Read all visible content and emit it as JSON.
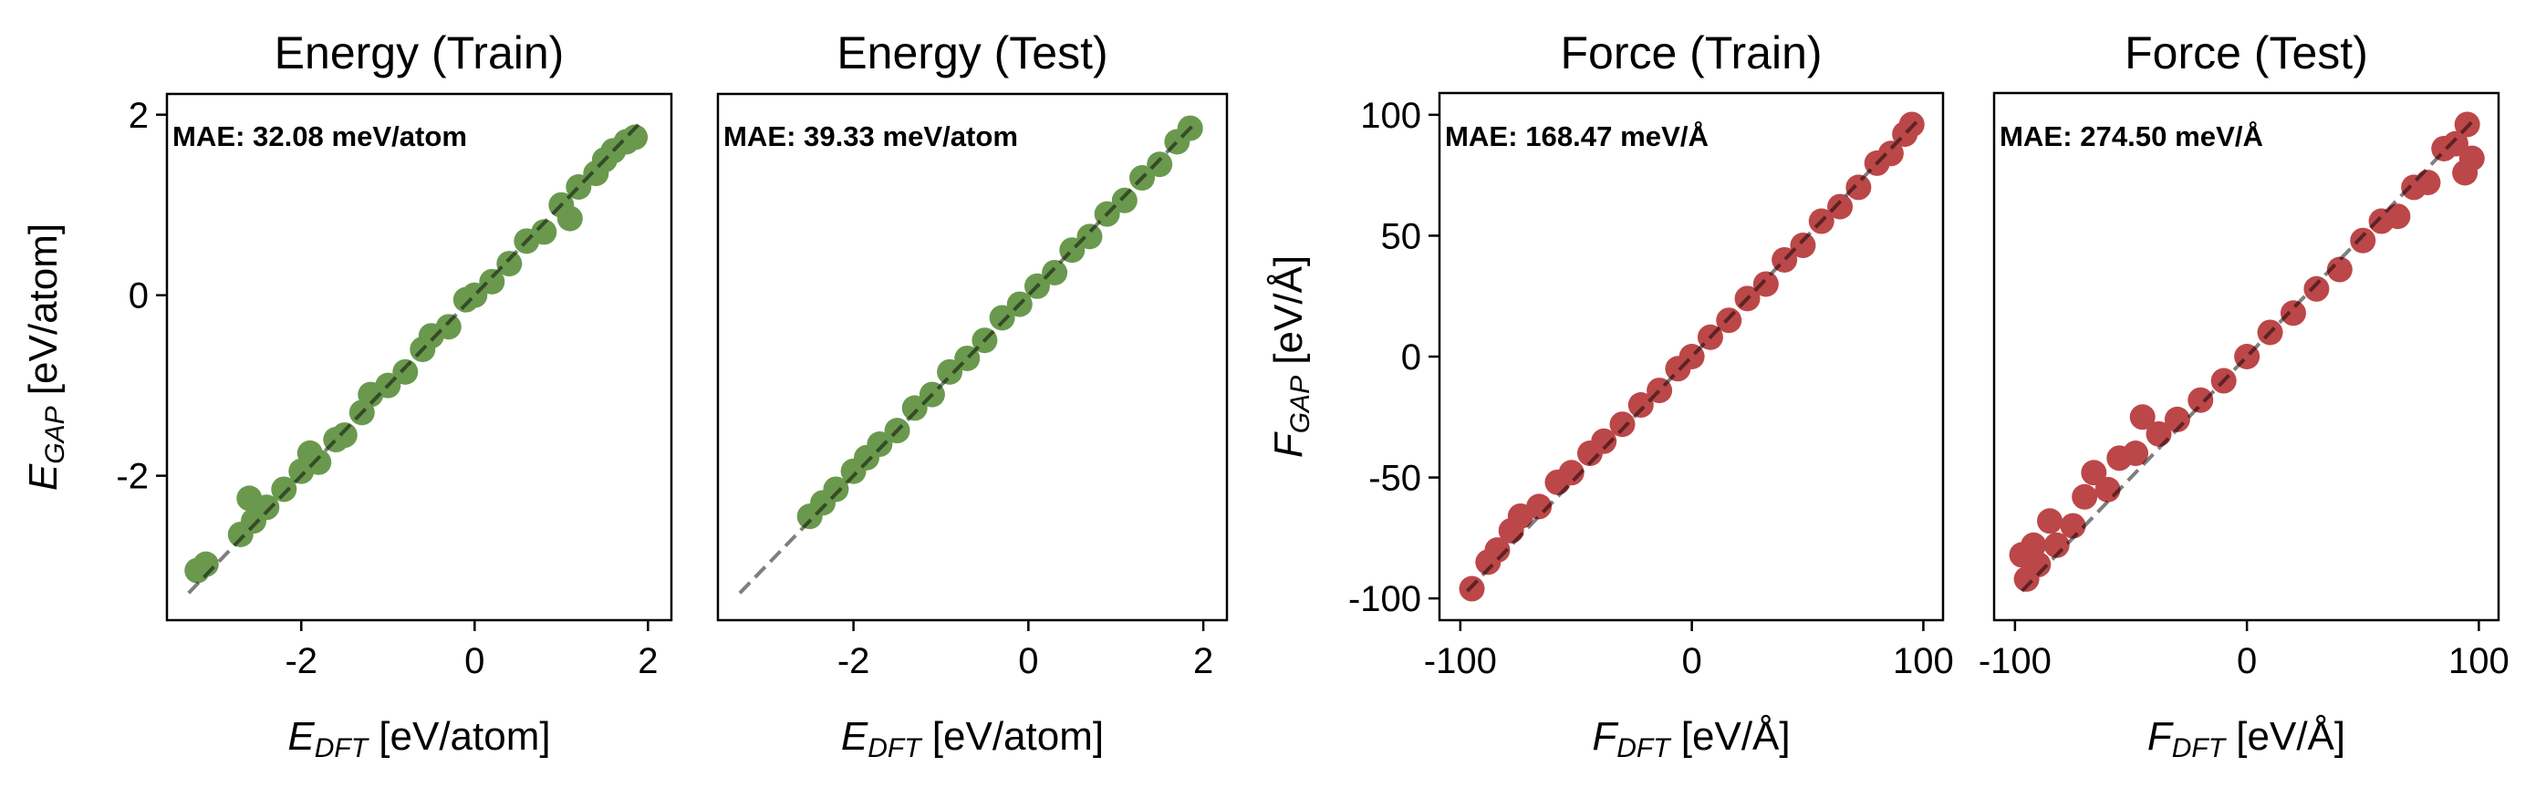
{
  "chart_data": [
    {
      "type": "scatter",
      "title": "Energy (Train)",
      "annotation": "MAE: 32.08 meV/atom",
      "xlabel": {
        "symbol": "E",
        "sub": "DFT",
        "unit": " [eV/atom]"
      },
      "ylabel": {
        "symbol": "E",
        "sub": "GAP",
        "unit": " [eV/atom]"
      },
      "xlim": [
        -3.55,
        2.27
      ],
      "ylim": [
        -3.6,
        2.23
      ],
      "xticks": [
        -2,
        0,
        2
      ],
      "xtick_labels": [
        "-2",
        "0",
        "2"
      ],
      "yticks": [
        -2,
        0,
        2
      ],
      "ytick_labels": [
        "-2",
        "0",
        "2"
      ],
      "color": "#6a994e",
      "reference_line": [
        -3.3,
        1.9
      ],
      "points": [
        [
          -3.2,
          -3.05
        ],
        [
          -3.1,
          -2.98
        ],
        [
          -2.7,
          -2.65
        ],
        [
          -2.6,
          -2.25
        ],
        [
          -2.55,
          -2.5
        ],
        [
          -2.4,
          -2.35
        ],
        [
          -2.2,
          -2.15
        ],
        [
          -2.0,
          -1.95
        ],
        [
          -1.9,
          -1.75
        ],
        [
          -1.8,
          -1.85
        ],
        [
          -1.6,
          -1.6
        ],
        [
          -1.5,
          -1.55
        ],
        [
          -1.3,
          -1.3
        ],
        [
          -1.2,
          -1.1
        ],
        [
          -1.0,
          -1.0
        ],
        [
          -0.8,
          -0.85
        ],
        [
          -0.6,
          -0.6
        ],
        [
          -0.5,
          -0.45
        ],
        [
          -0.3,
          -0.35
        ],
        [
          -0.1,
          -0.05
        ],
        [
          0.0,
          0.0
        ],
        [
          0.2,
          0.15
        ],
        [
          0.4,
          0.35
        ],
        [
          0.6,
          0.6
        ],
        [
          0.8,
          0.7
        ],
        [
          1.0,
          1.0
        ],
        [
          1.1,
          0.85
        ],
        [
          1.2,
          1.2
        ],
        [
          1.4,
          1.35
        ],
        [
          1.5,
          1.5
        ],
        [
          1.6,
          1.6
        ],
        [
          1.75,
          1.7
        ],
        [
          1.85,
          1.75
        ]
      ]
    },
    {
      "type": "scatter",
      "title": "Energy (Test)",
      "annotation": "MAE: 39.33 meV/atom",
      "xlabel": {
        "symbol": "E",
        "sub": "DFT",
        "unit": " [eV/atom]"
      },
      "ylabel": null,
      "xlim": [
        -3.55,
        2.27
      ],
      "ylim": [
        -3.6,
        2.23
      ],
      "xticks": [
        -2,
        0,
        2
      ],
      "xtick_labels": [
        "-2",
        "0",
        "2"
      ],
      "yticks": [],
      "ytick_labels": [],
      "color": "#6a994e",
      "reference_line": [
        -3.3,
        1.9
      ],
      "points": [
        [
          -2.5,
          -2.45
        ],
        [
          -2.35,
          -2.3
        ],
        [
          -2.2,
          -2.15
        ],
        [
          -2.0,
          -1.95
        ],
        [
          -1.85,
          -1.8
        ],
        [
          -1.7,
          -1.65
        ],
        [
          -1.5,
          -1.5
        ],
        [
          -1.3,
          -1.25
        ],
        [
          -1.1,
          -1.1
        ],
        [
          -0.9,
          -0.85
        ],
        [
          -0.7,
          -0.7
        ],
        [
          -0.5,
          -0.5
        ],
        [
          -0.3,
          -0.25
        ],
        [
          -0.1,
          -0.1
        ],
        [
          0.1,
          0.1
        ],
        [
          0.3,
          0.25
        ],
        [
          0.5,
          0.5
        ],
        [
          0.7,
          0.65
        ],
        [
          0.9,
          0.9
        ],
        [
          1.1,
          1.05
        ],
        [
          1.3,
          1.3
        ],
        [
          1.5,
          1.45
        ],
        [
          1.7,
          1.7
        ],
        [
          1.85,
          1.85
        ]
      ]
    },
    {
      "type": "scatter",
      "title": "Force (Train)",
      "annotation": "MAE: 168.47 meV/Å",
      "xlabel": {
        "symbol": "F",
        "sub": "DFT",
        "unit": " [eV/Å]"
      },
      "ylabel": {
        "symbol": "F",
        "sub": "GAP",
        "unit": " [eV/Å]"
      },
      "xlim": [
        -109,
        108.5
      ],
      "ylim": [
        -109,
        109
      ],
      "xticks": [
        -100,
        0,
        100
      ],
      "xtick_labels": [
        "-100",
        "0",
        "100"
      ],
      "yticks": [
        -100,
        -50,
        0,
        50,
        100
      ],
      "ytick_labels": [
        "-100",
        "-50",
        "0",
        "50",
        "100"
      ],
      "color": "#bc4749",
      "reference_line": [
        -97,
        97
      ],
      "points": [
        [
          -95,
          -96
        ],
        [
          -88,
          -85
        ],
        [
          -84,
          -80
        ],
        [
          -78,
          -72
        ],
        [
          -74,
          -66
        ],
        [
          -66,
          -62
        ],
        [
          -58,
          -52
        ],
        [
          -52,
          -48
        ],
        [
          -44,
          -40
        ],
        [
          -38,
          -35
        ],
        [
          -30,
          -28
        ],
        [
          -22,
          -20
        ],
        [
          -14,
          -14
        ],
        [
          -6,
          -5
        ],
        [
          0,
          0
        ],
        [
          8,
          8
        ],
        [
          16,
          15
        ],
        [
          24,
          24
        ],
        [
          32,
          30
        ],
        [
          40,
          40
        ],
        [
          48,
          46
        ],
        [
          56,
          56
        ],
        [
          64,
          62
        ],
        [
          72,
          70
        ],
        [
          80,
          80
        ],
        [
          86,
          84
        ],
        [
          92,
          92
        ],
        [
          95,
          96
        ]
      ]
    },
    {
      "type": "scatter",
      "title": "Force (Test)",
      "annotation": "MAE: 274.50 meV/Å",
      "xlabel": {
        "symbol": "F",
        "sub": "DFT",
        "unit": " [eV/Å]"
      },
      "ylabel": null,
      "xlim": [
        -109,
        108.5
      ],
      "ylim": [
        -109,
        109
      ],
      "xticks": [
        -100,
        0,
        100
      ],
      "xtick_labels": [
        "-100",
        "0",
        "100"
      ],
      "yticks": [],
      "ytick_labels": [],
      "color": "#bc4749",
      "reference_line": [
        -97,
        97
      ],
      "points": [
        [
          -97,
          -82
        ],
        [
          -95,
          -92
        ],
        [
          -92,
          -78
        ],
        [
          -90,
          -86
        ],
        [
          -85,
          -68
        ],
        [
          -82,
          -78
        ],
        [
          -75,
          -70
        ],
        [
          -70,
          -58
        ],
        [
          -66,
          -48
        ],
        [
          -60,
          -55
        ],
        [
          -55,
          -42
        ],
        [
          -48,
          -40
        ],
        [
          -45,
          -25
        ],
        [
          -38,
          -32
        ],
        [
          -30,
          -26
        ],
        [
          -20,
          -18
        ],
        [
          -10,
          -10
        ],
        [
          0,
          0
        ],
        [
          10,
          10
        ],
        [
          20,
          18
        ],
        [
          30,
          28
        ],
        [
          40,
          36
        ],
        [
          50,
          48
        ],
        [
          58,
          56
        ],
        [
          65,
          58
        ],
        [
          72,
          70
        ],
        [
          78,
          72
        ],
        [
          85,
          86
        ],
        [
          90,
          88
        ],
        [
          95,
          96
        ],
        [
          97,
          82
        ],
        [
          94,
          76
        ]
      ]
    }
  ]
}
